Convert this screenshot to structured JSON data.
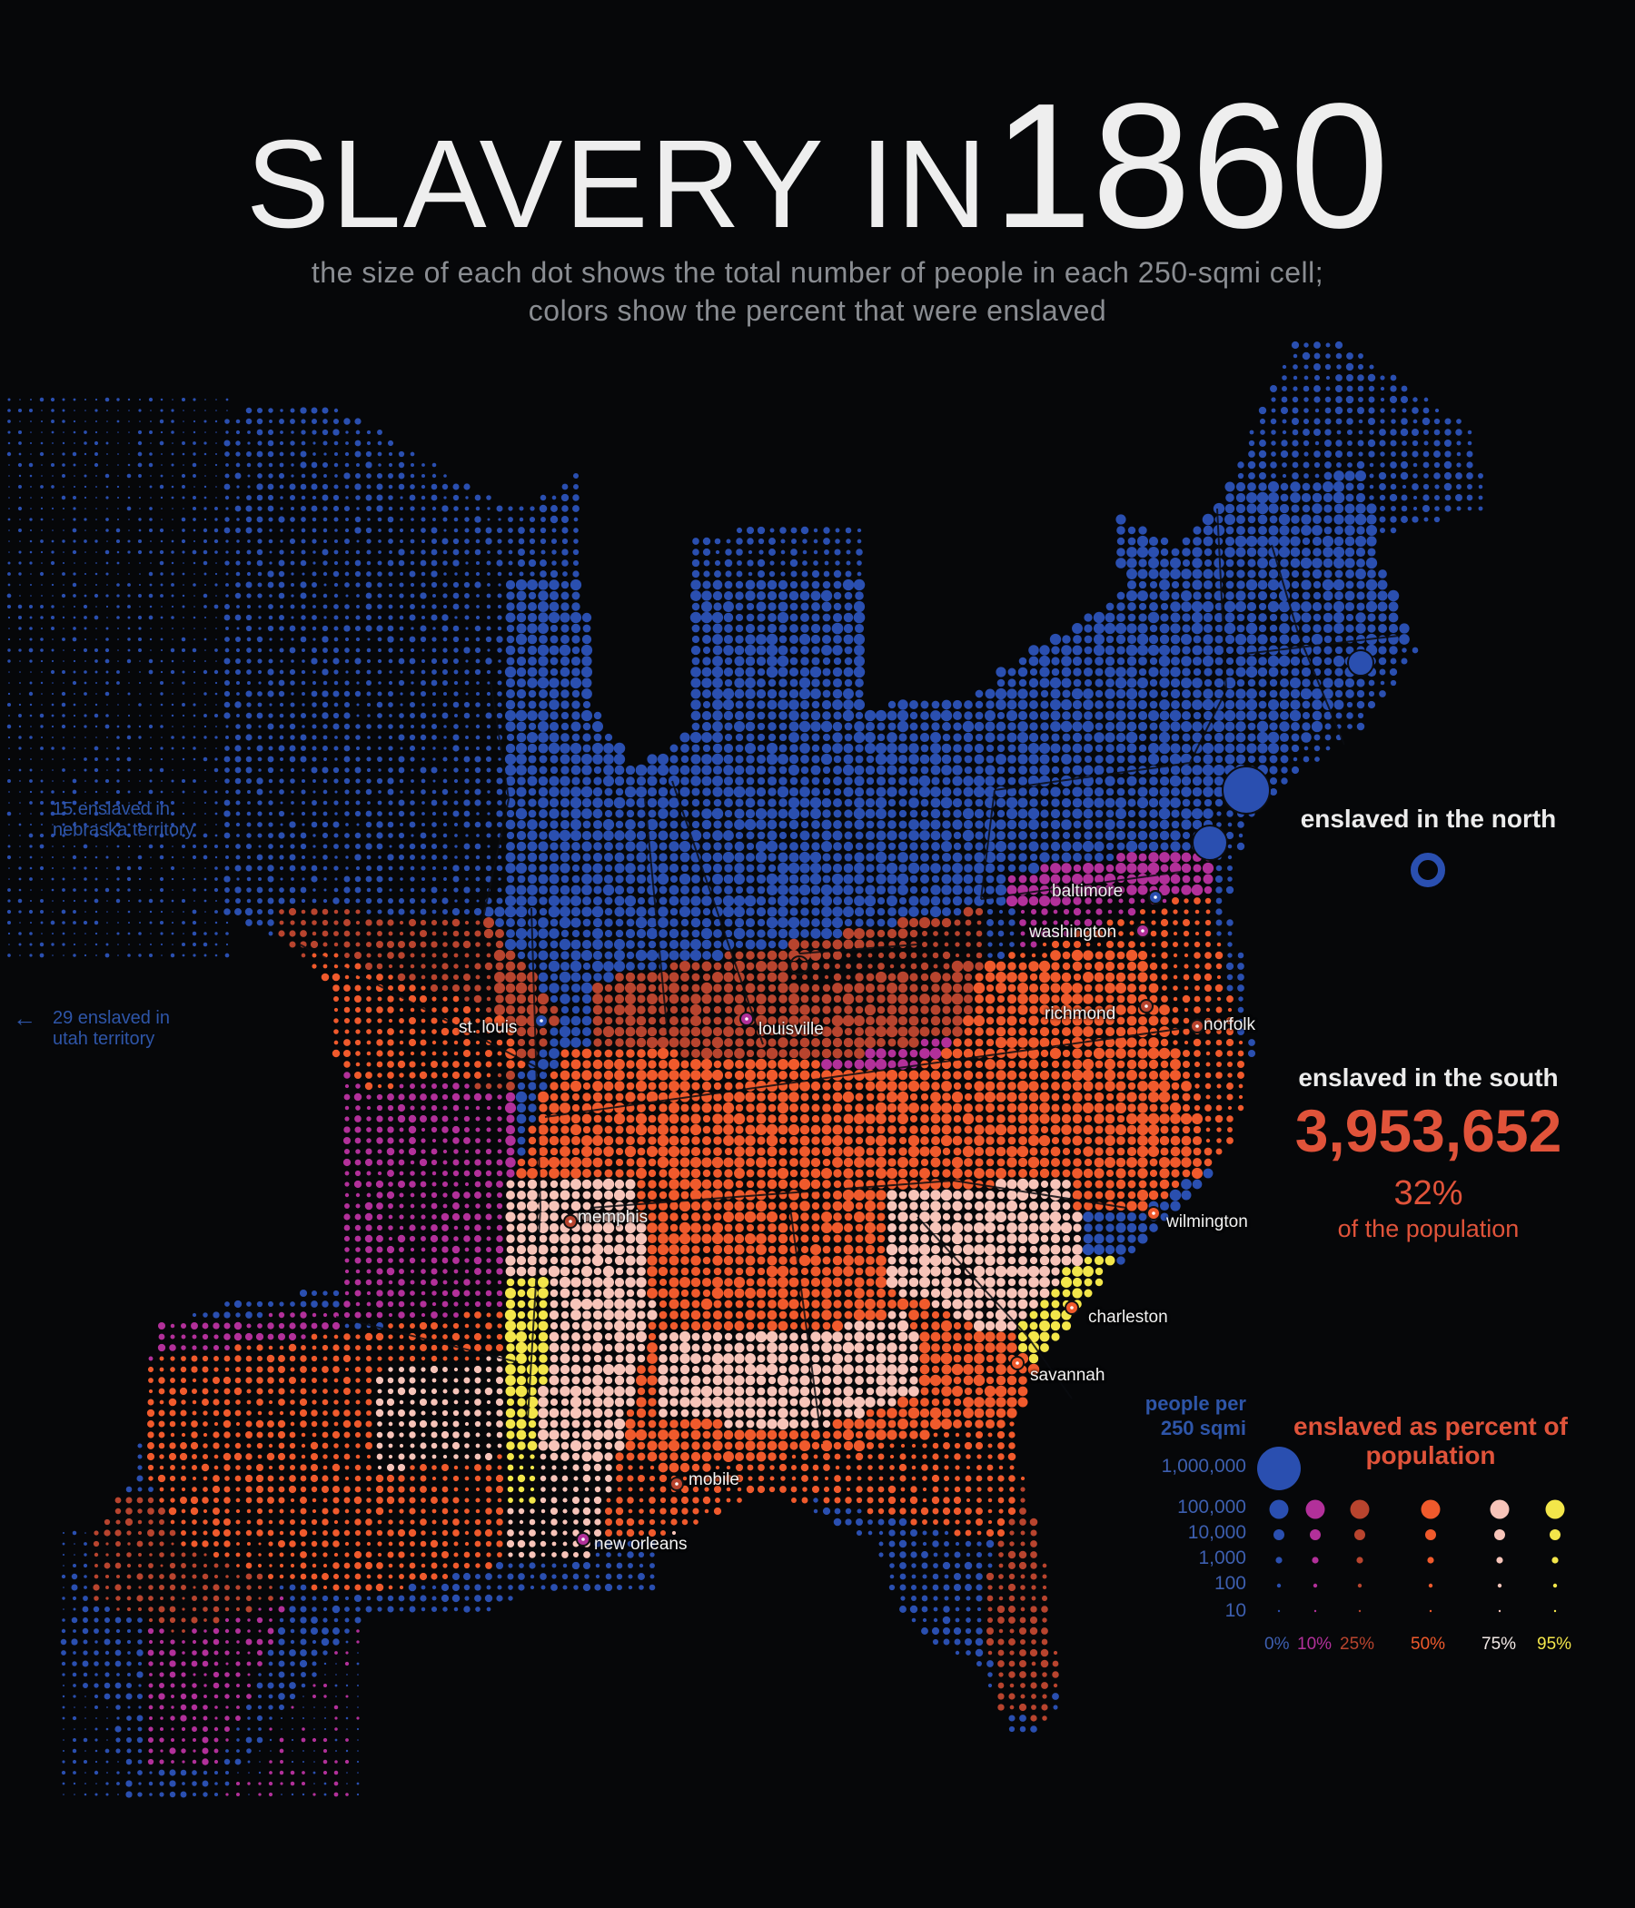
{
  "title": {
    "prefix": "SLAVERY IN",
    "year": "1860"
  },
  "subtitle": {
    "line1": "the size of each dot shows the total number of people in each 250-sqmi cell;",
    "line2": "colors show the percent that were enslaved"
  },
  "colors": {
    "background": "#060709",
    "pct_0": "#2a4fb0",
    "pct_10": "#b2309a",
    "pct_25": "#b8442e",
    "pct_50": "#f05a2c",
    "pct_75": "#f7c4b9",
    "pct_95": "#f3e64a"
  },
  "territories": {
    "nebraska": "15 enslaved in nebraska territory",
    "utah": "29 enslaved in utah territory",
    "utah_arrow": "←"
  },
  "cities": [
    {
      "name": "baltimore",
      "pct": 0
    },
    {
      "name": "washington",
      "pct": 10
    },
    {
      "name": "richmond",
      "pct": 25
    },
    {
      "name": "norfolk",
      "pct": 25
    },
    {
      "name": "st. louis",
      "pct": 0
    },
    {
      "name": "louisville",
      "pct": 10
    },
    {
      "name": "memphis",
      "pct": 25
    },
    {
      "name": "wilmington",
      "pct": 50
    },
    {
      "name": "charleston",
      "pct": 50
    },
    {
      "name": "savannah",
      "pct": 50
    },
    {
      "name": "mobile",
      "pct": 25
    },
    {
      "name": "new orleans",
      "pct": 10
    }
  ],
  "north": {
    "heading": "enslaved in the north"
  },
  "south": {
    "heading": "enslaved in the south",
    "count": "3,953,652",
    "percent": "32%",
    "percent_label": "of the population"
  },
  "legend": {
    "size_title": "people per 250 sqmi",
    "color_title": "enslaved as percent of population",
    "sizes": [
      "1,000,000",
      "100,000",
      "10,000",
      "1,000",
      "100",
      "10"
    ],
    "percents": [
      "0%",
      "10%",
      "25%",
      "50%",
      "75%",
      "95%"
    ]
  }
}
